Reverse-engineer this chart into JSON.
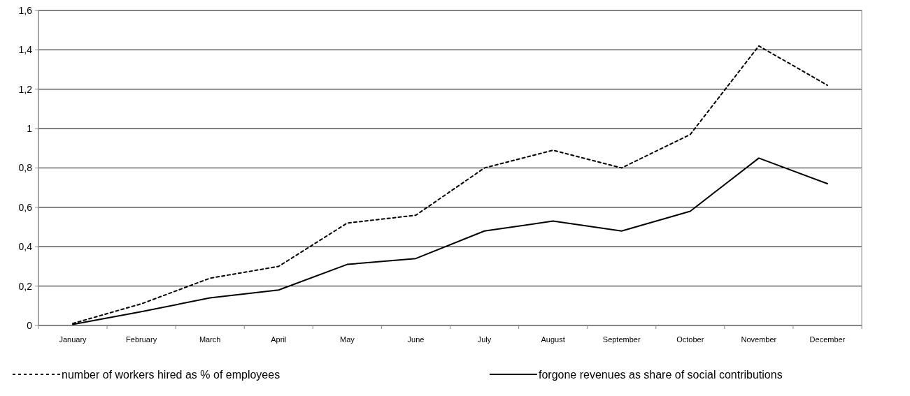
{
  "chart_data": {
    "type": "line",
    "categories": [
      "January",
      "February",
      "March",
      "April",
      "May",
      "June",
      "July",
      "August",
      "September",
      "October",
      "November",
      "December"
    ],
    "series": [
      {
        "name": "number of workers hired as % of employees",
        "color": "#000000",
        "line_style": "dotted",
        "values": [
          0.01,
          0.11,
          0.24,
          0.3,
          0.52,
          0.56,
          0.8,
          0.89,
          0.8,
          0.97,
          1.42,
          1.22
        ]
      },
      {
        "name": "forgone revenues as share of social contributions",
        "color": "#000000",
        "line_style": "solid",
        "values": [
          0.005,
          0.07,
          0.14,
          0.18,
          0.31,
          0.34,
          0.48,
          0.53,
          0.48,
          0.58,
          0.85,
          0.72
        ]
      }
    ],
    "ylim": [
      0,
      1.6
    ],
    "yticks": [
      0,
      {
        "value": 0.2,
        "label": "0,2"
      },
      {
        "value": 0.4,
        "label": "0,4"
      },
      {
        "value": 0.6,
        "label": "0,6"
      },
      {
        "value": 0.8,
        "label": "0,8"
      },
      1,
      {
        "value": 1.2,
        "label": "1,2"
      },
      {
        "value": 1.4,
        "label": "1,4"
      },
      {
        "value": 1.6,
        "label": "1,6"
      }
    ],
    "grid": "y",
    "legend": "bottom",
    "marker": "none"
  }
}
